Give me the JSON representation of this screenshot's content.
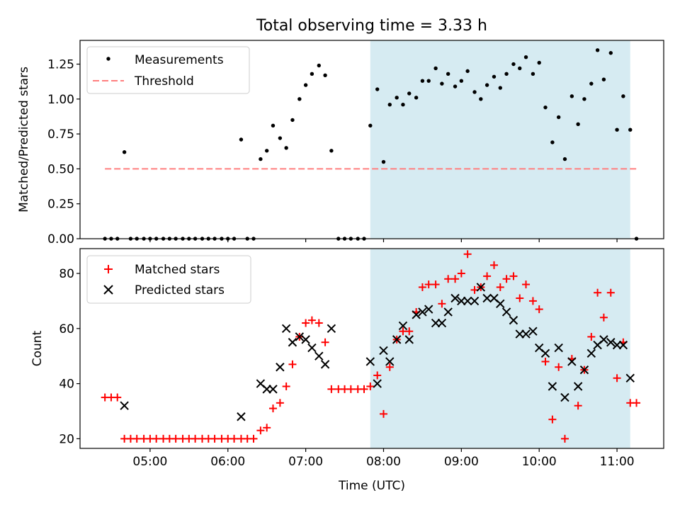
{
  "figure_title": "Total observing time = 3.33 h",
  "colors": {
    "highlight": "#add8e6",
    "threshold": "#ff7f7f",
    "measurement": "#000000",
    "matched": "#ff0000",
    "predicted": "#000000"
  },
  "chart_data": [
    {
      "type": "scatter",
      "ylabel": "Matched/Predicted stars",
      "xlim": [
        4.1,
        11.6
      ],
      "ylim": [
        0,
        1.42
      ],
      "yticks": [
        0,
        0.25,
        0.5,
        0.75,
        1.0,
        1.25
      ],
      "yticklabels": [
        "0.00",
        "0.25",
        "0.50",
        "0.75",
        "1.00",
        "1.25"
      ],
      "xtick_values": [
        5,
        6,
        7,
        8,
        9,
        10,
        11
      ],
      "highlight_span": [
        7.83,
        11.17
      ],
      "legend": {
        "position": "top-left",
        "entries": [
          "Measurements",
          "Threshold"
        ]
      },
      "threshold": {
        "name": "Threshold",
        "value": 0.5,
        "x_range": [
          4.42,
          11.25
        ]
      },
      "series": [
        {
          "name": "Measurements",
          "marker": "dot",
          "x": [
            4.42,
            4.5,
            4.58,
            4.67,
            4.75,
            4.83,
            4.92,
            5.0,
            5.08,
            5.17,
            5.25,
            5.33,
            5.42,
            5.5,
            5.58,
            5.67,
            5.75,
            5.83,
            5.92,
            6.0,
            6.08,
            6.17,
            6.25,
            6.33,
            6.42,
            6.5,
            6.58,
            6.67,
            6.75,
            6.83,
            6.92,
            7.0,
            7.08,
            7.17,
            7.25,
            7.33,
            7.42,
            7.5,
            7.58,
            7.67,
            7.75,
            7.83,
            7.92,
            8.0,
            8.08,
            8.17,
            8.25,
            8.33,
            8.42,
            8.5,
            8.58,
            8.67,
            8.75,
            8.83,
            8.92,
            9.0,
            9.08,
            9.17,
            9.25,
            9.33,
            9.42,
            9.5,
            9.58,
            9.67,
            9.75,
            9.83,
            9.92,
            10.0,
            10.08,
            10.17,
            10.25,
            10.33,
            10.42,
            10.5,
            10.58,
            10.67,
            10.75,
            10.83,
            10.92,
            11.0,
            11.08,
            11.17,
            11.25
          ],
          "y": [
            0,
            0,
            0,
            0.62,
            0,
            0,
            0,
            0,
            0,
            0,
            0,
            0,
            0,
            0,
            0,
            0,
            0,
            0,
            0,
            0,
            0,
            0.71,
            0,
            0,
            0.57,
            0.63,
            0.81,
            0.72,
            0.65,
            0.85,
            1.0,
            1.1,
            1.18,
            1.24,
            1.17,
            0.63,
            0,
            0,
            0,
            0,
            0,
            0.81,
            1.07,
            0.55,
            0.96,
            1.01,
            0.96,
            1.04,
            1.01,
            1.13,
            1.13,
            1.22,
            1.11,
            1.18,
            1.09,
            1.13,
            1.2,
            1.05,
            1.0,
            1.1,
            1.16,
            1.08,
            1.18,
            1.25,
            1.22,
            1.3,
            1.18,
            1.26,
            0.94,
            0.69,
            0.87,
            0.57,
            1.02,
            0.82,
            1.0,
            1.11,
            1.35,
            1.14,
            1.33,
            0.78,
            1.02,
            0.78,
            0
          ]
        }
      ]
    },
    {
      "type": "scatter",
      "xlabel": "Time (UTC)",
      "ylabel": "Count",
      "xlim": [
        4.1,
        11.6
      ],
      "ylim": [
        16.5,
        89
      ],
      "yticks": [
        20,
        40,
        60,
        80
      ],
      "xticks": [
        5,
        6,
        7,
        8,
        9,
        10,
        11
      ],
      "xticklabels": [
        "05:00",
        "06:00",
        "07:00",
        "08:00",
        "09:00",
        "10:00",
        "11:00"
      ],
      "highlight_span": [
        7.83,
        11.17
      ],
      "legend": {
        "position": "top-left",
        "entries": [
          "Matched stars",
          "Predicted stars"
        ]
      },
      "series": [
        {
          "name": "Matched stars",
          "marker": "+",
          "x": [
            4.42,
            4.5,
            4.58,
            4.67,
            4.75,
            4.83,
            4.92,
            5.0,
            5.08,
            5.17,
            5.25,
            5.33,
            5.42,
            5.5,
            5.58,
            5.67,
            5.75,
            5.83,
            5.92,
            6.0,
            6.08,
            6.17,
            6.25,
            6.33,
            6.42,
            6.5,
            6.58,
            6.67,
            6.75,
            6.83,
            6.92,
            7.0,
            7.08,
            7.17,
            7.25,
            7.33,
            7.42,
            7.5,
            7.58,
            7.67,
            7.75,
            7.83,
            7.92,
            8.0,
            8.08,
            8.17,
            8.25,
            8.33,
            8.42,
            8.5,
            8.58,
            8.67,
            8.75,
            8.83,
            8.92,
            9.0,
            9.08,
            9.17,
            9.25,
            9.33,
            9.42,
            9.5,
            9.58,
            9.67,
            9.75,
            9.83,
            9.92,
            10.0,
            10.08,
            10.17,
            10.25,
            10.33,
            10.42,
            10.5,
            10.58,
            10.67,
            10.75,
            10.83,
            10.92,
            11.0,
            11.08,
            11.17,
            11.25
          ],
          "y": [
            35,
            35,
            35,
            20,
            20,
            20,
            20,
            20,
            20,
            20,
            20,
            20,
            20,
            20,
            20,
            20,
            20,
            20,
            20,
            20,
            20,
            20,
            20,
            20,
            23,
            24,
            31,
            33,
            39,
            47,
            57,
            62,
            63,
            62,
            55,
            38,
            38,
            38,
            38,
            38,
            38,
            39,
            43,
            29,
            46,
            56,
            59,
            59,
            66,
            75,
            76,
            76,
            69,
            78,
            78,
            80,
            87,
            74,
            75,
            79,
            83,
            75,
            78,
            79,
            71,
            76,
            70,
            67,
            48,
            27,
            46,
            20,
            49,
            32,
            45,
            57,
            73,
            64,
            73,
            42,
            55,
            33,
            33
          ]
        },
        {
          "name": "Predicted stars",
          "marker": "x",
          "x": [
            4.67,
            6.17,
            6.42,
            6.5,
            6.58,
            6.67,
            6.75,
            6.83,
            6.92,
            7.0,
            7.08,
            7.17,
            7.25,
            7.33,
            7.83,
            7.92,
            8.0,
            8.08,
            8.17,
            8.25,
            8.33,
            8.42,
            8.5,
            8.58,
            8.67,
            8.75,
            8.83,
            8.92,
            9.0,
            9.08,
            9.17,
            9.25,
            9.33,
            9.42,
            9.5,
            9.58,
            9.67,
            9.75,
            9.83,
            9.92,
            10.0,
            10.08,
            10.17,
            10.25,
            10.33,
            10.42,
            10.5,
            10.58,
            10.67,
            10.75,
            10.83,
            10.92,
            11.0,
            11.08,
            11.17
          ],
          "y": [
            32,
            28,
            40,
            38,
            38,
            46,
            60,
            55,
            57,
            56,
            53,
            50,
            47,
            60,
            48,
            40,
            52,
            48,
            56,
            61,
            56,
            65,
            66,
            67,
            62,
            62,
            66,
            71,
            70,
            70,
            70,
            75,
            71,
            71,
            69,
            66,
            63,
            58,
            58,
            59,
            53,
            51,
            39,
            53,
            35,
            48,
            39,
            45,
            51,
            54,
            56,
            55,
            54,
            54,
            42
          ]
        }
      ]
    }
  ]
}
